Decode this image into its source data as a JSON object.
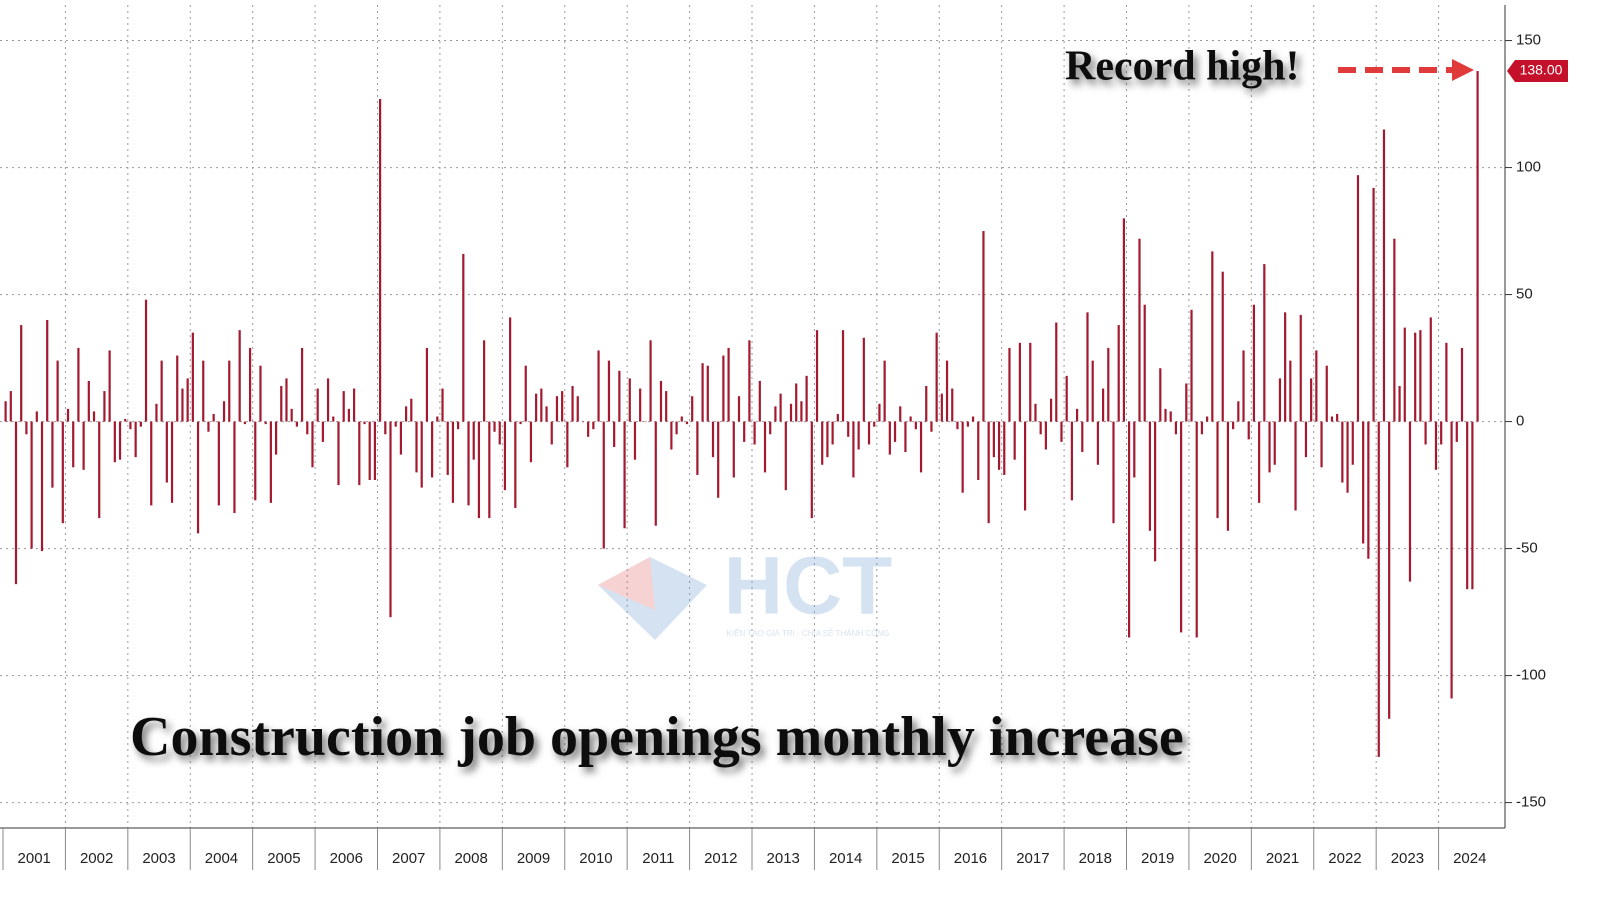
{
  "chart_data": {
    "type": "bar",
    "title": "Construction job openings monthly increase",
    "annotation": "Record high!",
    "last_value_tag": "138.00",
    "watermark": "HCT",
    "watermark_subtitle": "KIẾN TẠO GIÁ TRỊ - CHIA SẺ THÀNH CÔNG",
    "color": "#a3192f",
    "grid": true,
    "xlim": [
      2001,
      2025
    ],
    "xticks": [
      2001,
      2002,
      2003,
      2004,
      2005,
      2006,
      2007,
      2008,
      2009,
      2010,
      2011,
      2012,
      2013,
      2014,
      2015,
      2016,
      2017,
      2018,
      2019,
      2020,
      2021,
      2022,
      2023,
      2024
    ],
    "ylim": [
      -160,
      164
    ],
    "yticks": [
      -150,
      -100,
      -50,
      0,
      50,
      100,
      150
    ],
    "values": [
      8,
      12,
      -64,
      38,
      -5,
      -50,
      4,
      -51,
      40,
      -26,
      24,
      -40,
      5,
      -18,
      29,
      -19,
      16,
      4,
      -38,
      12,
      28,
      -16,
      -15,
      1,
      -3,
      -14,
      -2,
      48,
      -33,
      7,
      24,
      -24,
      -32,
      26,
      13,
      17,
      35,
      -44,
      24,
      -4,
      3,
      -33,
      8,
      24,
      -36,
      36,
      -1,
      29,
      -31,
      22,
      -1,
      -32,
      -13,
      14,
      17,
      5,
      -2,
      29,
      -5,
      -18,
      13,
      -8,
      17,
      2,
      -25,
      12,
      5,
      13,
      -25,
      -1,
      -23,
      -23,
      127,
      -5,
      -77,
      -2,
      -13,
      6,
      9,
      -20,
      -26,
      29,
      -22,
      2,
      13,
      -21,
      -32,
      -3,
      66,
      -33,
      -15,
      -38,
      32,
      -38,
      -4,
      -9,
      -27,
      41,
      -34,
      -1,
      22,
      -16,
      11,
      13,
      6,
      -9,
      10,
      12,
      -18,
      14,
      10,
      0,
      -6,
      -3,
      28,
      -50,
      24,
      -10,
      20,
      -42,
      17,
      -15,
      13,
      0,
      32,
      -41,
      16,
      12,
      -11,
      -5,
      2,
      -1,
      10,
      -21,
      23,
      22,
      -14,
      -30,
      26,
      29,
      -22,
      10,
      -8,
      32,
      -9,
      16,
      -20,
      -5,
      6,
      11,
      -27,
      7,
      15,
      8,
      18,
      -38,
      36,
      -17,
      -14,
      -9,
      3,
      36,
      -6,
      -22,
      -11,
      33,
      -9,
      -2,
      7,
      24,
      -13,
      -8,
      6,
      -12,
      2,
      -3,
      -20,
      14,
      -4,
      35,
      11,
      24,
      13,
      -3,
      -28,
      -2,
      2,
      -23,
      75,
      -40,
      -14,
      -19,
      -21,
      29,
      -15,
      31,
      -35,
      31,
      7,
      -5,
      -11,
      9,
      39,
      -8,
      18,
      -31,
      5,
      -12,
      43,
      24,
      -17,
      13,
      29,
      -40,
      38,
      80,
      -85,
      -22,
      72,
      46,
      -43,
      -55,
      21,
      5,
      4,
      -5,
      -83,
      15,
      44,
      -85,
      -5,
      2,
      67,
      -38,
      59,
      -43,
      -3,
      8,
      28,
      -7,
      46,
      -32,
      62,
      -20,
      -17,
      17,
      43,
      24,
      -35,
      42,
      -14,
      17,
      28,
      -18,
      22,
      2,
      3,
      -24,
      -28,
      -17,
      97,
      -48,
      -54,
      92,
      -132,
      115,
      -117,
      72,
      14,
      37,
      -63,
      35,
      36,
      -9,
      41,
      -19,
      -9,
      31,
      -109,
      -8,
      29,
      -66,
      -66,
      138
    ]
  }
}
